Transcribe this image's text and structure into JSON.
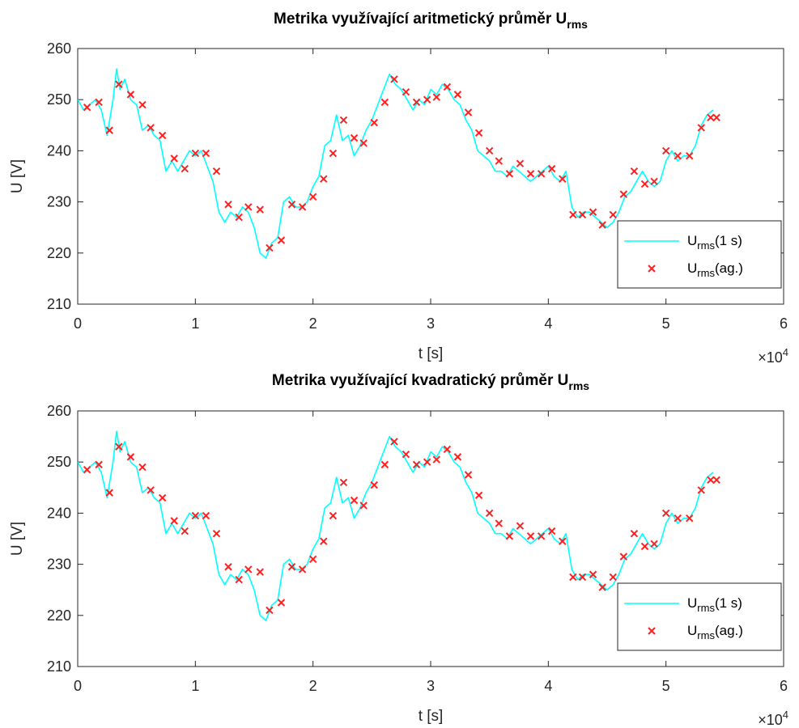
{
  "chart_data": [
    {
      "type": "line",
      "title": "Metrika využívající aritmetický průměr U",
      "title_subscript": "rms",
      "xlabel": "t [s]",
      "ylabel": "U [V]",
      "x_multiplier": "×10",
      "x_multiplier_exp": "4",
      "xlim": [
        0,
        60000
      ],
      "ylim": [
        210,
        260
      ],
      "xticks": [
        0,
        10000,
        20000,
        30000,
        40000,
        50000,
        60000
      ],
      "xtick_labels": [
        "0",
        "1",
        "2",
        "3",
        "4",
        "5",
        "6"
      ],
      "yticks": [
        210,
        220,
        230,
        240,
        250,
        260
      ],
      "ytick_labels": [
        "210",
        "220",
        "230",
        "240",
        "250",
        "260"
      ],
      "grid": false,
      "legend_position": "bottom-right",
      "series": [
        {
          "name": "U",
          "name_subscript": "rms",
          "name_suffix": "(1 s)",
          "style": "line",
          "color": "#00FFFF",
          "x": [
            0,
            500,
            1000,
            1500,
            2000,
            2500,
            3000,
            3300,
            3600,
            4000,
            4500,
            5000,
            5500,
            6000,
            6500,
            7000,
            7500,
            8000,
            8500,
            9000,
            9500,
            10000,
            10500,
            11000,
            11500,
            12000,
            12500,
            13000,
            13500,
            14000,
            14500,
            15000,
            15500,
            16000,
            16500,
            17000,
            17500,
            18000,
            18500,
            19000,
            19500,
            20000,
            20500,
            21000,
            21500,
            22000,
            22500,
            23000,
            23500,
            24000,
            24500,
            25000,
            25500,
            26000,
            26500,
            27000,
            27500,
            28000,
            28500,
            29000,
            29500,
            30000,
            30500,
            31000,
            31500,
            32000,
            32500,
            33000,
            33500,
            34000,
            34500,
            35000,
            35500,
            36000,
            36500,
            37000,
            37500,
            38000,
            38500,
            39000,
            39500,
            40000,
            40500,
            41000,
            41500,
            42000,
            42500,
            43000,
            43500,
            44000,
            44500,
            45000,
            45500,
            46000,
            46500,
            47000,
            47500,
            48000,
            48500,
            49000,
            49500,
            50000,
            50500,
            51000,
            51500,
            52000,
            52500,
            53000,
            53500,
            54000
          ],
          "y": [
            250,
            248,
            249,
            250,
            248,
            243,
            250,
            256,
            252,
            254,
            250,
            249,
            244,
            245,
            243,
            242,
            236,
            238,
            236,
            238,
            240,
            239,
            240,
            237,
            234,
            228,
            226,
            228,
            227,
            229,
            228,
            225,
            220,
            219,
            222,
            223,
            230,
            231,
            229,
            229,
            230,
            233,
            235,
            241,
            242,
            247,
            242,
            243,
            239,
            241,
            244,
            246,
            249,
            252,
            255,
            253,
            252,
            250,
            248,
            250,
            249,
            252,
            251,
            253,
            252,
            250,
            249,
            246,
            244,
            240,
            239,
            238,
            236,
            236,
            235,
            237,
            236,
            235,
            234,
            235,
            236,
            237,
            235,
            234,
            236,
            229,
            227,
            228,
            228,
            227,
            226,
            225,
            226,
            228,
            231,
            232,
            234,
            236,
            234,
            233,
            234,
            238,
            240,
            238,
            239,
            239,
            241,
            245,
            247,
            248
          ]
        },
        {
          "name": "U",
          "name_subscript": "rms",
          "name_suffix": "(ag.)",
          "style": "marker-x",
          "color": "#FF2020",
          "x": [
            800,
            1800,
            2700,
            3500,
            4500,
            5500,
            6200,
            7200,
            8200,
            9100,
            10000,
            10900,
            11800,
            12800,
            13700,
            14500,
            15500,
            16300,
            17300,
            18200,
            19100,
            20000,
            20900,
            21700,
            22600,
            23500,
            24300,
            25200,
            26100,
            26900,
            27900,
            28800,
            29700,
            30500,
            31400,
            32300,
            33200,
            34100,
            35000,
            35800,
            36700,
            37600,
            38500,
            39400,
            40300,
            41200,
            42100,
            42900,
            43800,
            44600,
            45500,
            46400,
            47300,
            48200,
            49000,
            50000,
            51000,
            52000,
            53000,
            53800,
            54300
          ],
          "y": [
            248.5,
            249.5,
            244,
            253,
            251,
            249,
            244.5,
            243,
            238.5,
            236.5,
            239.5,
            239.5,
            236,
            229.5,
            227,
            229,
            228.5,
            221,
            222.5,
            229.5,
            229,
            231,
            234.5,
            239.5,
            246,
            242.5,
            241.5,
            245.5,
            249.5,
            254,
            251.5,
            249.5,
            250,
            250.5,
            252.5,
            251,
            247.5,
            243.5,
            240,
            238,
            235.5,
            237.5,
            235.5,
            235.5,
            236.5,
            234.5,
            227.5,
            227.5,
            228,
            225.5,
            227.5,
            231.5,
            236,
            233.5,
            234,
            240,
            239,
            239,
            244.5,
            246.5,
            246.5
          ]
        }
      ]
    },
    {
      "type": "line",
      "title": "Metrika využívající kvadratický průměr U",
      "title_subscript": "rms",
      "xlabel": "t [s]",
      "ylabel": "U [V]",
      "x_multiplier": "×10",
      "x_multiplier_exp": "4",
      "xlim": [
        0,
        60000
      ],
      "ylim": [
        210,
        260
      ],
      "xticks": [
        0,
        10000,
        20000,
        30000,
        40000,
        50000,
        60000
      ],
      "xtick_labels": [
        "0",
        "1",
        "2",
        "3",
        "4",
        "5",
        "6"
      ],
      "yticks": [
        210,
        220,
        230,
        240,
        250,
        260
      ],
      "ytick_labels": [
        "210",
        "220",
        "230",
        "240",
        "250",
        "260"
      ],
      "grid": false,
      "legend_position": "bottom-right",
      "series": [
        {
          "name": "U",
          "name_subscript": "rms",
          "name_suffix": "(1 s)",
          "style": "line",
          "color": "#00FFFF",
          "x": [
            0,
            500,
            1000,
            1500,
            2000,
            2500,
            3000,
            3300,
            3600,
            4000,
            4500,
            5000,
            5500,
            6000,
            6500,
            7000,
            7500,
            8000,
            8500,
            9000,
            9500,
            10000,
            10500,
            11000,
            11500,
            12000,
            12500,
            13000,
            13500,
            14000,
            14500,
            15000,
            15500,
            16000,
            16500,
            17000,
            17500,
            18000,
            18500,
            19000,
            19500,
            20000,
            20500,
            21000,
            21500,
            22000,
            22500,
            23000,
            23500,
            24000,
            24500,
            25000,
            25500,
            26000,
            26500,
            27000,
            27500,
            28000,
            28500,
            29000,
            29500,
            30000,
            30500,
            31000,
            31500,
            32000,
            32500,
            33000,
            33500,
            34000,
            34500,
            35000,
            35500,
            36000,
            36500,
            37000,
            37500,
            38000,
            38500,
            39000,
            39500,
            40000,
            40500,
            41000,
            41500,
            42000,
            42500,
            43000,
            43500,
            44000,
            44500,
            45000,
            45500,
            46000,
            46500,
            47000,
            47500,
            48000,
            48500,
            49000,
            49500,
            50000,
            50500,
            51000,
            51500,
            52000,
            52500,
            53000,
            53500,
            54000
          ],
          "y": [
            250,
            248,
            249,
            250,
            248,
            243,
            250,
            256,
            252,
            254,
            250,
            249,
            244,
            245,
            243,
            242,
            236,
            238,
            236,
            238,
            240,
            239,
            240,
            237,
            234,
            228,
            226,
            228,
            227,
            229,
            228,
            225,
            220,
            219,
            222,
            223,
            230,
            231,
            229,
            229,
            230,
            233,
            235,
            241,
            242,
            247,
            242,
            243,
            239,
            241,
            244,
            246,
            249,
            252,
            255,
            253,
            252,
            250,
            248,
            250,
            249,
            252,
            251,
            253,
            252,
            250,
            249,
            246,
            244,
            240,
            239,
            238,
            236,
            236,
            235,
            237,
            236,
            235,
            234,
            235,
            236,
            237,
            235,
            234,
            236,
            229,
            227,
            228,
            228,
            227,
            226,
            225,
            226,
            228,
            231,
            232,
            234,
            236,
            234,
            233,
            234,
            238,
            240,
            238,
            239,
            239,
            241,
            245,
            247,
            248
          ]
        },
        {
          "name": "U",
          "name_subscript": "rms",
          "name_suffix": "(ag.)",
          "style": "marker-x",
          "color": "#FF2020",
          "x": [
            800,
            1800,
            2700,
            3500,
            4500,
            5500,
            6200,
            7200,
            8200,
            9100,
            10000,
            10900,
            11800,
            12800,
            13700,
            14500,
            15500,
            16300,
            17300,
            18200,
            19100,
            20000,
            20900,
            21700,
            22600,
            23500,
            24300,
            25200,
            26100,
            26900,
            27900,
            28800,
            29700,
            30500,
            31400,
            32300,
            33200,
            34100,
            35000,
            35800,
            36700,
            37600,
            38500,
            39400,
            40300,
            41200,
            42100,
            42900,
            43800,
            44600,
            45500,
            46400,
            47300,
            48200,
            49000,
            50000,
            51000,
            52000,
            53000,
            53800,
            54300
          ],
          "y": [
            248.5,
            249.5,
            244,
            253,
            251,
            249,
            244.5,
            243,
            238.5,
            236.5,
            239.5,
            239.5,
            236,
            229.5,
            227,
            229,
            228.5,
            221,
            222.5,
            229.5,
            229,
            231,
            234.5,
            239.5,
            246,
            242.5,
            241.5,
            245.5,
            249.5,
            254,
            251.5,
            249.5,
            250,
            250.5,
            252.5,
            251,
            247.5,
            243.5,
            240,
            238,
            235.5,
            237.5,
            235.5,
            235.5,
            236.5,
            234.5,
            227.5,
            227.5,
            228,
            225.5,
            227.5,
            231.5,
            236,
            233.5,
            234,
            240,
            239,
            239,
            244.5,
            246.5,
            246.5
          ]
        }
      ]
    }
  ]
}
